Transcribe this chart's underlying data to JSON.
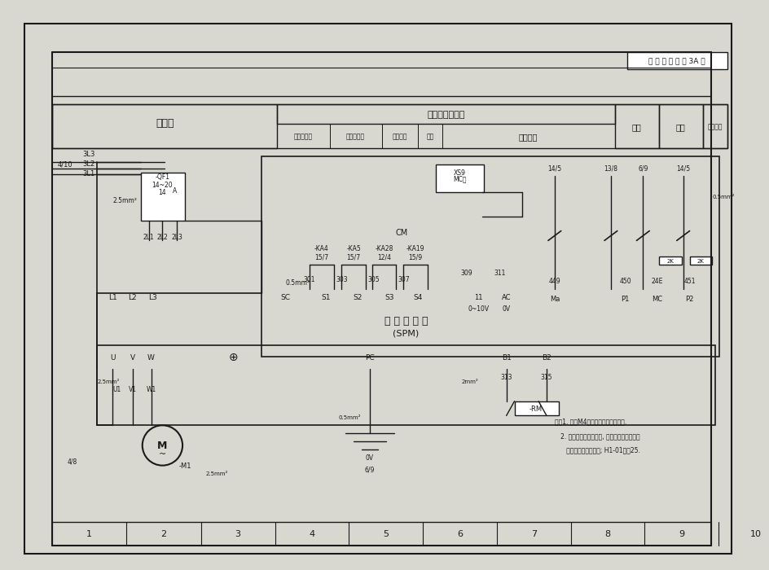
{
  "title_box": "电 气 原 理 图 第 3A 页",
  "bg_color": "#d8d8d0",
  "paper_color": "#e8e8e0",
  "line_color": "#1a1a1a",
  "header": {
    "main_motor": "主电机",
    "converter_signal": "变频器控制信号",
    "fwd": "主电机正转",
    "rev": "主电机反转",
    "fault": "外部故障",
    "reset": "复位",
    "analog": "模拟电压",
    "fault2": "故障",
    "zero_speed": "零速",
    "speed_reach": "速度到达"
  },
  "bottom_labels": [
    "1",
    "2",
    "3",
    "4",
    "5",
    "6",
    "7",
    "8",
    "9",
    "10"
  ],
  "converter_label": "安 川 变 频 器",
  "converter_model": "(SPM)",
  "notes": [
    "注：1. 电缆M4的屏蔽线的屏蔽层接地.",
    "   2. 安川变频器使用虚页, 自学习时请按电机铭",
    "      牌上的数据进行设定; H1-01设为25."
  ]
}
